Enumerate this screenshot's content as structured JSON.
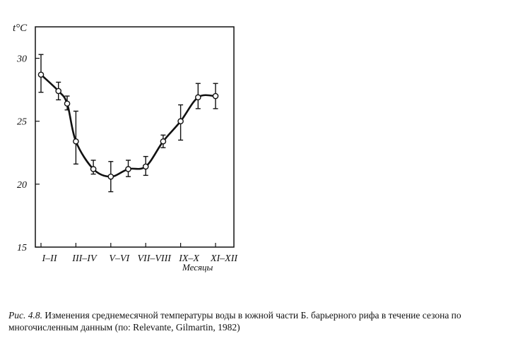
{
  "chart_data": {
    "type": "line",
    "title": "",
    "ylabel": "t°C",
    "xlabel": "Месяцы",
    "ylim": [
      15,
      32.5
    ],
    "yticks": [
      15,
      20,
      25,
      30
    ],
    "categories": [
      "I–II",
      "III–IV",
      "V–VI",
      "VII–VIII",
      "IX–X",
      "XI–XII"
    ],
    "grid": false,
    "series": [
      {
        "x": [
          0.0,
          0.5,
          0.75,
          1.0,
          1.5,
          2.0,
          2.5,
          3.0,
          3.5,
          4.0,
          4.5,
          5.0
        ],
        "values": [
          28.7,
          27.4,
          26.4,
          23.4,
          21.2,
          20.6,
          21.2,
          21.4,
          23.4,
          25.0,
          26.9,
          27.0
        ],
        "err_low": [
          27.3,
          26.7,
          25.9,
          21.6,
          20.8,
          19.4,
          20.6,
          20.7,
          22.9,
          23.5,
          26.0,
          26.0
        ],
        "err_high": [
          30.3,
          28.1,
          27.0,
          25.8,
          21.9,
          21.8,
          21.9,
          22.2,
          23.9,
          26.3,
          28.0,
          28.0
        ]
      }
    ]
  },
  "caption": {
    "label": "Рис. 4.8.",
    "text": "Изменения среднемесячной температуры воды в южной части Б. барьерного рифа в течение сезона по многочисленным данным (по: Relevante, Gilmartin, 1982)"
  }
}
